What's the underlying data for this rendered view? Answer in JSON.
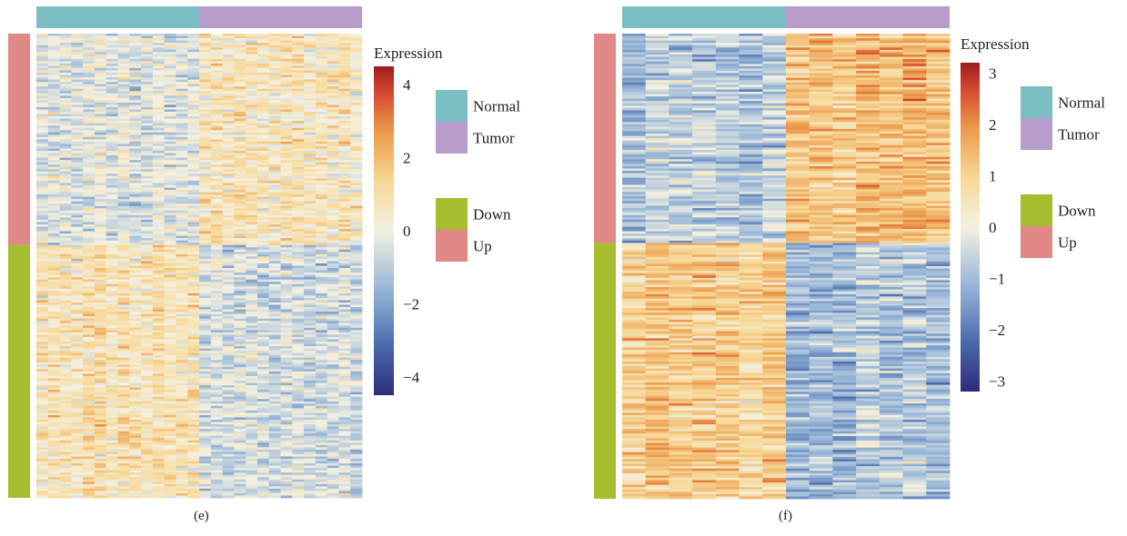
{
  "colors": {
    "normal": "#7bbec3",
    "tumor": "#b89ccb",
    "down": "#a6bd2f",
    "up": "#e08886",
    "scale_low": "#2f2a7a",
    "scale_mid": "#fdfbe9",
    "scale_high": "#9e1a1f"
  },
  "chart_data": [
    {
      "type": "heatmap",
      "caption": "(e)",
      "legend_title": "Expression",
      "colorbar_range": [
        -4.5,
        4.5
      ],
      "colorbar_ticks": [
        4,
        2,
        0,
        -2,
        -4
      ],
      "colorbar_tick_labels": [
        "4",
        "2",
        "0",
        "−2",
        "−4"
      ],
      "column_groups": [
        {
          "name": "Normal",
          "count": 14
        },
        {
          "name": "Tumor",
          "count": 14
        }
      ],
      "row_groups": [
        {
          "name": "Up",
          "count": 92
        },
        {
          "name": "Down",
          "count": 110
        }
      ],
      "group_legend": [
        "Normal",
        "Tumor",
        "Down",
        "Up"
      ],
      "pattern": {
        "up_normal": -0.3,
        "up_tumor": 0.7,
        "down_normal": 0.8,
        "down_tumor": -0.5,
        "noise": 0.9
      },
      "seed": 11
    },
    {
      "type": "heatmap",
      "caption": "(f)",
      "legend_title": "Expression",
      "colorbar_range": [
        -3.2,
        3.2
      ],
      "colorbar_ticks": [
        3,
        2,
        1,
        0,
        -1,
        -2,
        -3
      ],
      "colorbar_tick_labels": [
        "3",
        "2",
        "1",
        "0",
        "−1",
        "−2",
        "−3"
      ],
      "column_groups": [
        {
          "name": "Normal",
          "count": 7
        },
        {
          "name": "Tumor",
          "count": 7
        }
      ],
      "row_groups": [
        {
          "name": "Up",
          "count": 90
        },
        {
          "name": "Down",
          "count": 110
        }
      ],
      "group_legend": [
        "Normal",
        "Tumor",
        "Down",
        "Up"
      ],
      "pattern": {
        "up_normal": -0.8,
        "up_tumor": 1.3,
        "down_normal": 1.0,
        "down_tumor": -0.9,
        "noise": 0.65
      },
      "seed": 29
    }
  ]
}
